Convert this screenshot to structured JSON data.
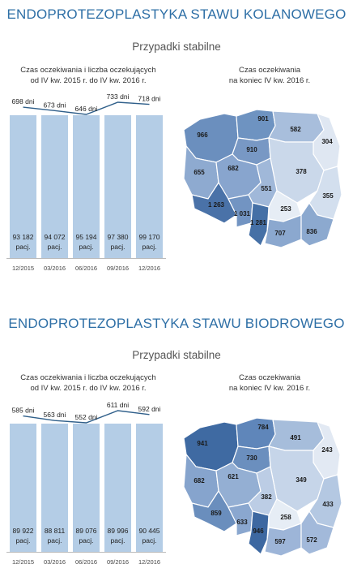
{
  "sections": [
    {
      "title": "ENDOPROTEZOPLASTYKA STAWU KOLANOWEGO",
      "subtitle": "Przypadki stabilne",
      "chart_caption_1": "Czas oczekiwania i liczba oczekujących",
      "chart_caption_2": "od IV kw. 2015 r. do IV kw. 2016 r.",
      "map_caption_1": "Czas oczekiwania",
      "map_caption_2": "na koniec IV kw. 2016 r.",
      "regions": {
        "zachodniopomorskie": "966",
        "pomorskie": "901",
        "warminsko_mazurskie": "582",
        "podlaskie": "304",
        "kujawsko_pomorskie": "910",
        "lubuskie": "655",
        "wielkopolskie": "682",
        "mazowieckie": "378",
        "lodzkie": "551",
        "lubelskie": "355",
        "dolnoslaskie": "1 263",
        "opolskie": "1 031",
        "slaskie": "1 281",
        "swietokrzyskie": "253",
        "malopolskie": "707",
        "podkarpackie": "836"
      }
    },
    {
      "title": "ENDOPROTEZOPLASTYKA STAWU BIODROWEGO",
      "subtitle": "Przypadki stabilne",
      "chart_caption_1": "Czas oczekiwania i liczba oczekujących",
      "chart_caption_2": "od IV kw. 2015 r. do IV kw. 2016 r.",
      "map_caption_1": "Czas oczekiwania",
      "map_caption_2": "na koniec IV kw. 2016 r.",
      "regions": {
        "zachodniopomorskie": "941",
        "pomorskie": "784",
        "warminsko_mazurskie": "491",
        "podlaskie": "243",
        "kujawsko_pomorskie": "730",
        "lubuskie": "682",
        "wielkopolskie": "621",
        "mazowieckie": "349",
        "lodzkie": "382",
        "lubelskie": "433",
        "dolnoslaskie": "859",
        "opolskie": "633",
        "slaskie": "946",
        "swietokrzyskie": "258",
        "malopolskie": "597",
        "podkarpackie": "572"
      }
    }
  ],
  "colors": {
    "title": "#2e6fa6",
    "bar": "#b4cde6",
    "line": "#2f5f8a"
  },
  "chart_data": [
    {
      "type": "bar",
      "categories": [
        "12/2015",
        "03/2016",
        "06/2016",
        "09/2016",
        "12/2016"
      ],
      "series": [
        {
          "values": [
            93182,
            94072,
            95194,
            97380,
            99170
          ],
          "labels": [
            "93 182",
            "94 072",
            "95 194",
            "97 380",
            "99 170"
          ],
          "unit": "pacj."
        },
        {
          "type": "line",
          "values": [
            698,
            673,
            646,
            733,
            718
          ],
          "labels": [
            "698 dni",
            "673 dni",
            "646 dni",
            "733 dni",
            "718 dni"
          ]
        }
      ]
    },
    {
      "type": "bar",
      "categories": [
        "12/2015",
        "03/2016",
        "06/2016",
        "09/2016",
        "12/2016"
      ],
      "series": [
        {
          "values": [
            89922,
            88811,
            89076,
            89996,
            90445
          ],
          "labels": [
            "89 922",
            "88 811",
            "89 076",
            "89 996",
            "90 445"
          ],
          "unit": "pacj."
        },
        {
          "type": "line",
          "values": [
            585,
            563,
            552,
            611,
            592
          ],
          "labels": [
            "585 dni",
            "563 dni",
            "552 dni",
            "611 dni",
            "592 dni"
          ]
        }
      ]
    }
  ]
}
